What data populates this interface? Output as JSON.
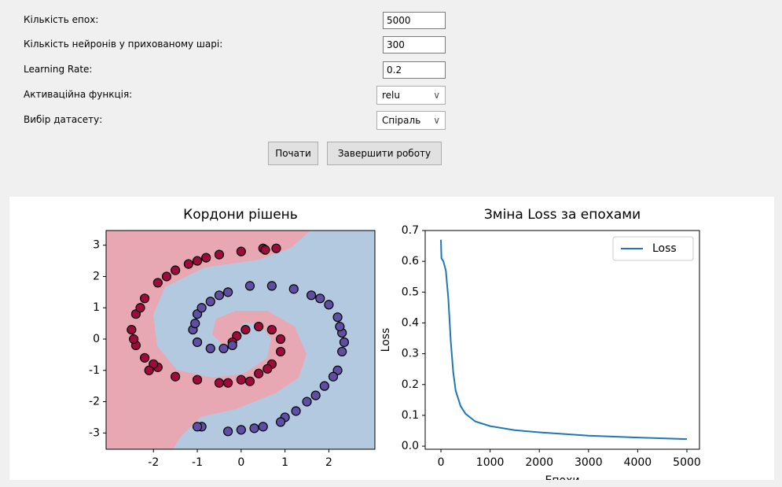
{
  "form": {
    "fields": [
      {
        "label": "Кількість епох:",
        "value": "5000",
        "kind": "input"
      },
      {
        "label": "Кількість нейронів у прихованому шарі:",
        "value": "300",
        "kind": "input"
      },
      {
        "label": "Learning Rate:",
        "value": "0.2",
        "kind": "input"
      },
      {
        "label": "Активаційна функція:",
        "value": "relu",
        "kind": "select"
      },
      {
        "label": "Вибір датасету:",
        "value": "Спіраль",
        "kind": "select"
      }
    ],
    "buttons": [
      "Почати",
      "Завершити роботу"
    ]
  },
  "chart_data": [
    {
      "type": "scatter",
      "title": "Кордони рішень",
      "xlim": [
        -3.08,
        3.05
      ],
      "ylim": [
        -3.52,
        3.47
      ],
      "xticks": [
        -2,
        -1,
        0,
        1,
        2
      ],
      "yticks": [
        -3,
        -2,
        -1,
        0,
        1,
        2,
        3
      ],
      "series": [
        {
          "color": "#a00b3c",
          "x": [
            0.5,
            0,
            -0.5,
            -1,
            -1.5,
            -1.9,
            -2.2,
            -2.4,
            -2.5,
            -2.4,
            -2.2,
            -1.9,
            -1.5,
            -1,
            -0.5,
            0,
            0.4,
            0.7,
            0.9,
            0.9,
            0.7,
            0.4,
            0.1,
            -0.1,
            -0.2,
            0.2,
            -2.3,
            -2,
            0.8,
            -0.3,
            -1.2,
            -2.45,
            0.55,
            -0.8,
            -1.7,
            -2.1,
            0.6
          ],
          "y": [
            2.9,
            2.8,
            2.7,
            2.5,
            2.2,
            1.8,
            1.3,
            0.8,
            0.3,
            -0.2,
            -0.6,
            -0.9,
            -1.2,
            -1.3,
            -1.4,
            -1.3,
            -1.1,
            -0.8,
            -0.4,
            0,
            0.3,
            0.4,
            0.3,
            0.1,
            -0.1,
            -1.35,
            1,
            -0.8,
            2.9,
            -1.4,
            2.4,
            0,
            2.85,
            2.6,
            2,
            -1,
            -0.95
          ]
        },
        {
          "color": "#5e4fa2",
          "x": [
            -0.3,
            0,
            0.5,
            1,
            1.5,
            1.9,
            2.2,
            2.3,
            2.3,
            2.2,
            2,
            1.6,
            1.2,
            0.7,
            0.2,
            -0.3,
            -0.7,
            -1,
            -1.1,
            -1,
            -0.7,
            -0.4,
            -0.2,
            -0.9,
            0.3,
            1.25,
            2.1,
            2.35,
            1.8,
            -0.9,
            -1.05,
            -1,
            0.9,
            2.25,
            1.7,
            -0.5
          ],
          "y": [
            -2.95,
            -2.9,
            -2.8,
            -2.5,
            -2,
            -1.5,
            -1,
            -0.4,
            0.2,
            0.7,
            1.1,
            1.4,
            1.6,
            1.7,
            1.7,
            1.5,
            1.2,
            0.8,
            0.3,
            -0.1,
            -0.3,
            -0.3,
            -0.2,
            -2.8,
            -2.85,
            -2.3,
            -1.2,
            -0.1,
            1.3,
            1,
            0.5,
            -2.8,
            -2.65,
            0.4,
            -1.8,
            1.4
          ]
        }
      ]
    },
    {
      "type": "line",
      "title": "Зміна Loss за епохами",
      "xlabel": "Епохи",
      "ylabel": "Loss",
      "legend": "upper right",
      "xlim": [
        -320,
        5256
      ],
      "ylim": [
        -0.01,
        0.7
      ],
      "xticks": [
        0,
        1000,
        2000,
        3000,
        4000,
        5000
      ],
      "yticks": [
        {
          "value": 0,
          "label": "0.0"
        },
        0.1,
        0.2,
        0.3,
        0.4,
        0.5,
        0.6,
        0.7
      ],
      "x": [
        0,
        10,
        50,
        100,
        150,
        200,
        250,
        300,
        400,
        500,
        700,
        1000,
        1500,
        2000,
        3000,
        4000,
        5000
      ],
      "series": [
        {
          "name": "Loss",
          "color": "#1f77b4",
          "values": [
            0.67,
            0.61,
            0.6,
            0.57,
            0.48,
            0.34,
            0.24,
            0.18,
            0.13,
            0.105,
            0.08,
            0.065,
            0.052,
            0.045,
            0.034,
            0.028,
            0.023
          ]
        }
      ]
    }
  ]
}
